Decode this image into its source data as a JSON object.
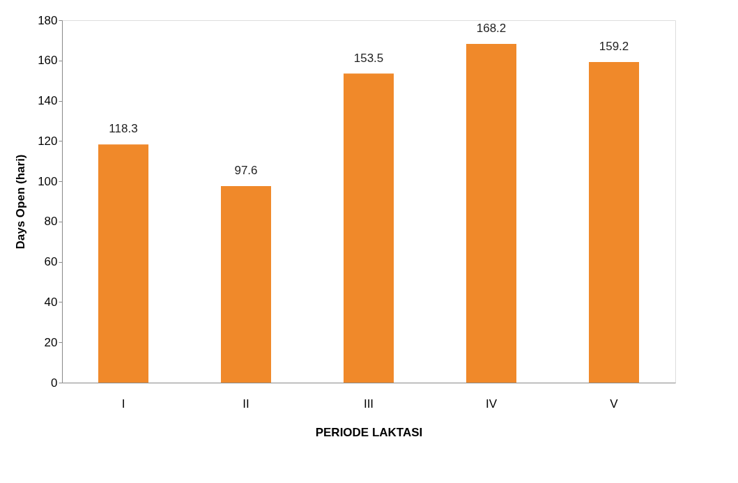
{
  "chart_data": {
    "type": "bar",
    "xlabel": "PERIODE LAKTASI",
    "ylabel": "Days Open (hari)",
    "categories": [
      "I",
      "II",
      "III",
      "IV",
      "V"
    ],
    "values": [
      118.3,
      97.6,
      153.5,
      168.2,
      159.2
    ],
    "color": "#f0892a",
    "ylim": [
      0,
      180
    ],
    "yticks": [
      0,
      20,
      40,
      60,
      80,
      100,
      120,
      140,
      160,
      180
    ],
    "grid": false,
    "data_labels": true
  }
}
